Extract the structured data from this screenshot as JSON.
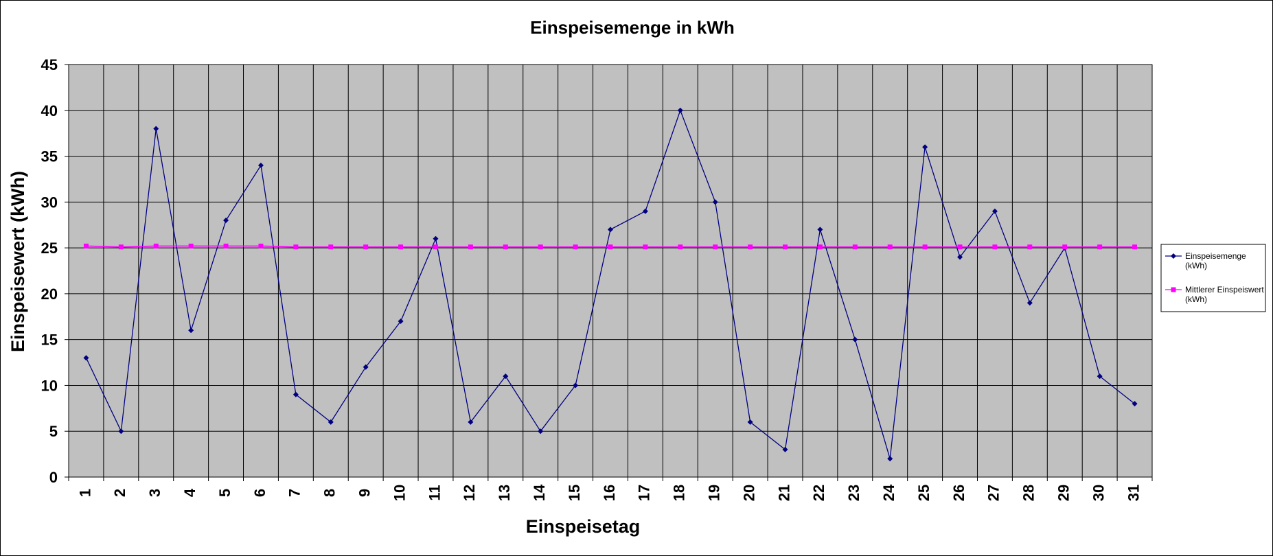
{
  "chart_data": {
    "type": "line",
    "title": "Einspeisemenge in kWh",
    "xlabel": "Einspeisetag",
    "ylabel": "Einspeisewert  (kWh)",
    "categories": [
      "1",
      "2",
      "3",
      "4",
      "5",
      "6",
      "7",
      "8",
      "9",
      "10",
      "11",
      "12",
      "13",
      "14",
      "15",
      "16",
      "17",
      "18",
      "19",
      "20",
      "21",
      "22",
      "23",
      "24",
      "25",
      "26",
      "27",
      "28",
      "29",
      "30",
      "31"
    ],
    "ylim": [
      0,
      45
    ],
    "yticks": [
      "0",
      "5",
      "10",
      "15",
      "20",
      "25",
      "30",
      "35",
      "40",
      "45"
    ],
    "grid": true,
    "legend_position": "right",
    "series": [
      {
        "name": "Einspeisemenge (kWh)",
        "legend_lines": [
          "Einspeisemenge",
          "(kWh)"
        ],
        "color": "#000080",
        "marker": "diamond",
        "values": [
          13,
          5,
          38,
          16,
          28,
          34,
          9,
          6,
          12,
          17,
          26,
          6,
          11,
          5,
          10,
          27,
          29,
          40,
          30,
          6,
          3,
          27,
          15,
          2,
          36,
          24,
          29,
          19,
          25,
          11,
          8
        ]
      },
      {
        "name": "Mittlerer Einspeiswert (kWh)",
        "legend_lines": [
          "Mittlerer Einspeiswert",
          "(kWh)"
        ],
        "color": "#FF00FF",
        "marker": "square",
        "values": [
          25.2,
          25.1,
          25.2,
          25.2,
          25.2,
          25.2,
          25.1,
          25.1,
          25.1,
          25.1,
          25.1,
          25.1,
          25.1,
          25.1,
          25.1,
          25.1,
          25.1,
          25.1,
          25.1,
          25.1,
          25.1,
          25.1,
          25.1,
          25.1,
          25.1,
          25.1,
          25.1,
          25.1,
          25.1,
          25.1,
          25.1
        ]
      }
    ]
  },
  "colors": {
    "plot_background": "#C0C0C0",
    "gridline": "#000000"
  }
}
